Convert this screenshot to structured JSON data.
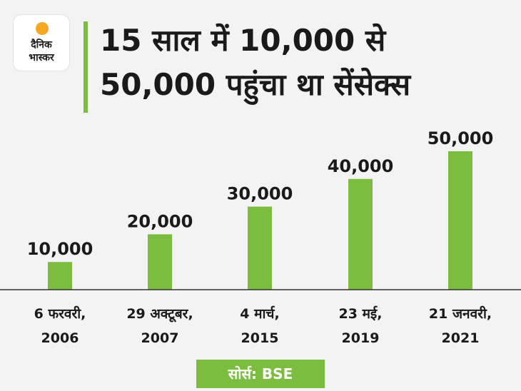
{
  "logo": {
    "line1": "दैनिक",
    "line2": "भास्कर",
    "sun_color": "#f5a623"
  },
  "title": {
    "line1": "15 साल में 10,000 से",
    "line2": "50,000 पहुंचा था सेंसेक्स"
  },
  "source": "सोर्स: BSE",
  "colors": {
    "bar": "#7cbd3f",
    "accent": "#7cbd3f",
    "background": "#f3f3f3"
  },
  "chart_data": {
    "type": "bar",
    "categories": [
      [
        "6 फरवरी,",
        "2006"
      ],
      [
        "29 अक्टूबर,",
        "2007"
      ],
      [
        "4 मार्च,",
        "2015"
      ],
      [
        "23 मई,",
        "2019"
      ],
      [
        "21 जनवरी,",
        "2021"
      ]
    ],
    "values": [
      10000,
      20000,
      30000,
      40000,
      50000
    ],
    "value_labels": [
      "10,000",
      "20,000",
      "30,000",
      "40,000",
      "50,000"
    ],
    "ylim": [
      0,
      50000
    ],
    "grid": false
  }
}
